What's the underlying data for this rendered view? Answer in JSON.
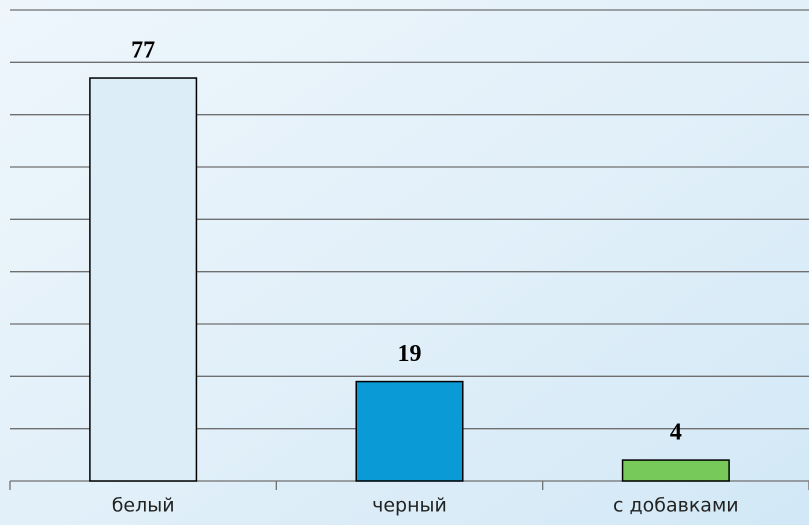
{
  "chart_data": {
    "type": "bar",
    "categories": [
      "белый",
      "черный",
      "с добавками"
    ],
    "values": [
      77,
      19,
      4
    ],
    "colors": [
      "#dcedf8",
      "#0a9bd6",
      "#77c95a"
    ],
    "ylim": [
      0,
      90
    ],
    "yticks": [
      0,
      10,
      20,
      30,
      40,
      50,
      60,
      70,
      80,
      90
    ],
    "grid": true,
    "data_labels": true
  }
}
